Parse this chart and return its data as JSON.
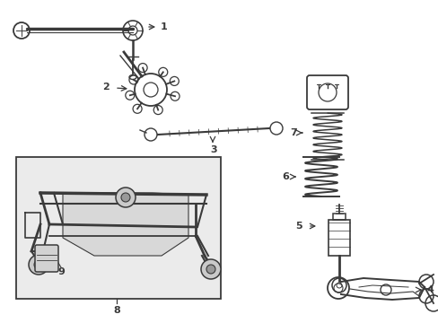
{
  "bg_color": "#ffffff",
  "line_color": "#3a3a3a",
  "box_bg": "#ebebeb",
  "fig_width": 4.89,
  "fig_height": 3.6,
  "dpi": 100
}
